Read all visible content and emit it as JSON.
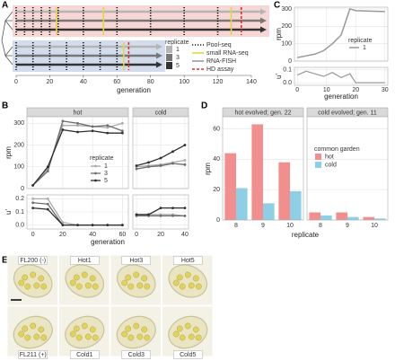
{
  "panel_labels": [
    "A",
    "B",
    "C",
    "D",
    "E"
  ],
  "timeline": {
    "xlim": [
      0,
      140
    ],
    "xticks": [
      0,
      20,
      40,
      60,
      80,
      100,
      120,
      140
    ],
    "xlabel": "generation",
    "legend_title": "replicate",
    "replicates": [
      "1",
      "3",
      "5"
    ],
    "replicate_colors": [
      "#b5b5b5",
      "#777777",
      "#333333"
    ],
    "assays": [
      {
        "name": "Pool-seq",
        "color": "#111111"
      },
      {
        "name": "small RNA-seq",
        "color": "#e6d640"
      },
      {
        "name": "RNA-FISH",
        "color": "#9a9a9a"
      },
      {
        "name": "HD assay",
        "color": "#e0302a"
      }
    ],
    "groups": [
      {
        "color": "#f7d6d6",
        "end": 140,
        "pool_seq": [
          0,
          5,
          10,
          15,
          20,
          25,
          40,
          60,
          80,
          100,
          120
        ],
        "small_rna_seq": [
          24,
          52,
          128
        ],
        "hd_assay": [
          134
        ]
      },
      {
        "color": "#d3dcec",
        "end": 78,
        "pool_seq": [
          0,
          10,
          20,
          30,
          40,
          50,
          60
        ],
        "small_rna_seq": [
          64
        ],
        "hd_assay": [
          67
        ]
      }
    ]
  },
  "panel_b": {
    "type": "line",
    "ylabel": "rpm",
    "u_label": "u'",
    "xlabel": "generation",
    "legend_title": "replicate",
    "replicates": [
      "1",
      "3",
      "5"
    ],
    "ylim": [
      0,
      330
    ],
    "yticks": [
      0,
      100,
      200,
      300
    ],
    "u_ylim": [
      -0.03,
      0.23
    ],
    "u_yticks": [
      {
        "value": 0,
        "label": "0.0"
      },
      0.1,
      0.2
    ],
    "facets": [
      {
        "name": "hot",
        "xlim": [
          -4,
          64
        ],
        "xticks": [
          0,
          20,
          40,
          60
        ],
        "x": [
          0,
          10,
          20,
          30,
          40,
          50,
          60
        ],
        "series": [
          {
            "color": "#aaaaaa",
            "values": [
              15,
              90,
              290,
              290,
              285,
              280,
              300
            ],
            "u": [
              0.2,
              0.2,
              0.02,
              0,
              0,
              0,
              0
            ]
          },
          {
            "color": "#6e6e6e",
            "values": [
              15,
              80,
              310,
              300,
              285,
              290,
              265
            ],
            "u": [
              0.17,
              0.16,
              0,
              0,
              0,
              0,
              0
            ]
          },
          {
            "color": "#2e2e2e",
            "values": [
              15,
              100,
              270,
              260,
              265,
              255,
              255
            ],
            "u": [
              0.13,
              0.12,
              0,
              0,
              0,
              0,
              0
            ]
          }
        ]
      },
      {
        "name": "cold",
        "xlim": [
          -3,
          43
        ],
        "xticks": [
          0,
          20,
          40
        ],
        "x": [
          0,
          10,
          20,
          30,
          40
        ],
        "series": [
          {
            "color": "#aaaaaa",
            "values": [
              100,
              105,
              110,
              120,
              130
            ],
            "u": [
              0.08,
              0.08,
              0.08,
              0.08,
              0.07
            ]
          },
          {
            "color": "#6e6e6e",
            "values": [
              90,
              100,
              105,
              115,
              110
            ],
            "u": [
              0.07,
              0.07,
              0.07,
              0.07,
              0.07
            ]
          },
          {
            "color": "#2e2e2e",
            "values": [
              105,
              120,
              140,
              170,
              200
            ],
            "u": [
              0.08,
              0.08,
              0.13,
              0.13,
              0.13
            ]
          }
        ]
      }
    ]
  },
  "panel_c": {
    "type": "line",
    "ylabel": "rpm",
    "u_label": "u'",
    "xlabel": "generation",
    "legend_title": "replicate",
    "replicates": [
      "1"
    ],
    "color": "#999999",
    "xlim": [
      -1,
      31
    ],
    "xticks": [
      0,
      10,
      20,
      30
    ],
    "ylim": [
      0,
      310
    ],
    "yticks": [
      0,
      100,
      200,
      300
    ],
    "u_ylim": [
      -0.02,
      0.12
    ],
    "u_yticks": [
      {
        "value": 0,
        "label": "0.0"
      },
      0.1
    ],
    "x": [
      0,
      3,
      6,
      9,
      12,
      15,
      18,
      20,
      30
    ],
    "values": [
      20,
      30,
      40,
      60,
      100,
      150,
      300,
      290,
      285
    ],
    "u": [
      0.06,
      0.09,
      0.07,
      0.05,
      0.08,
      0.04,
      0.07,
      0,
      0
    ]
  },
  "panel_d": {
    "type": "bar",
    "ylabel": "rpm",
    "xlabel": "replicate",
    "legend_title": "common garden",
    "groups": [
      "hot",
      "cold"
    ],
    "colors": [
      "#f28e8e",
      "#8fcfe6"
    ],
    "categories": [
      "8",
      "9",
      "10"
    ],
    "ylim": [
      0,
      68
    ],
    "yticks": [
      0,
      20,
      40,
      60
    ],
    "facets": [
      {
        "name": "hot evolved; gen. 22",
        "series": [
          {
            "values": [
              44,
              63,
              38
            ]
          },
          {
            "values": [
              21,
              11,
              19
            ]
          }
        ]
      },
      {
        "name": "cold evolved; gen. 11",
        "series": [
          {
            "values": [
              5,
              5,
              2
            ]
          },
          {
            "values": [
              3,
              2,
              1
            ]
          }
        ]
      }
    ]
  },
  "panel_e": {
    "labels_top": [
      "FL200 (-)",
      "Hot1",
      "Hot3",
      "Hot5"
    ],
    "labels_bottom": [
      "FL211 (+)",
      "Cold1",
      "Cold3",
      "Cold5"
    ]
  }
}
